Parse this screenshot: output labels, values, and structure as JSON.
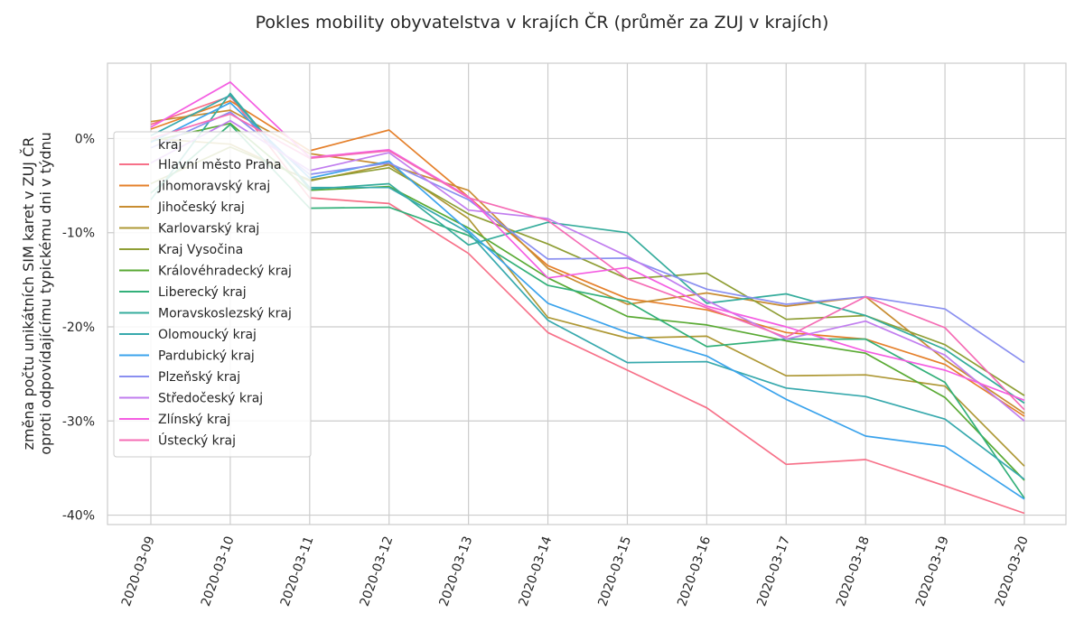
{
  "chart_data": {
    "type": "line",
    "title": "Pokles mobility obyvatelstva v krajích ČR (průměr za ZUJ v krajích)",
    "ylabel_lines": [
      "změna počtu unikátních SIM karet v ZUJ ČR",
      "oproti odpovídajícímu typickému dni v týdnu"
    ],
    "xlabel": "",
    "x": [
      "2020-03-09",
      "2020-03-10",
      "2020-03-11",
      "2020-03-12",
      "2020-03-13",
      "2020-03-14",
      "2020-03-15",
      "2020-03-16",
      "2020-03-17",
      "2020-03-18",
      "2020-03-19",
      "2020-03-20"
    ],
    "ylim": [
      -41,
      8
    ],
    "yticks": [
      0,
      -10,
      -20,
      -30,
      -40
    ],
    "ytick_labels": [
      "0%",
      "-10%",
      "-20%",
      "-30%",
      "-40%"
    ],
    "grid": true,
    "legend_title": "kraj",
    "legend_position": "upper-left",
    "series": [
      {
        "name": "Hlavní město Praha",
        "color": "#f77189",
        "values": [
          1.5,
          4.5,
          -6.3,
          -6.9,
          -12.2,
          -20.6,
          -24.6,
          -28.6,
          -34.6,
          -34.1,
          -36.9,
          -39.8
        ]
      },
      {
        "name": "Jihomoravský kraj",
        "color": "#e5802b",
        "values": [
          1.0,
          4.0,
          -1.3,
          0.9,
          -6.2,
          -13.5,
          -17.0,
          -18.2,
          -20.6,
          -21.3,
          -24.0,
          -29.5
        ]
      },
      {
        "name": "Jihočeský kraj",
        "color": "#c88d32",
        "values": [
          1.8,
          3.0,
          -1.6,
          -2.8,
          -5.5,
          -13.8,
          -17.6,
          -16.4,
          -17.8,
          -16.8,
          -23.5,
          -29.2
        ]
      },
      {
        "name": "Karlovarský kraj",
        "color": "#ae9835",
        "values": [
          0.0,
          -0.6,
          -4.5,
          -2.8,
          -8.5,
          -19.0,
          -21.2,
          -21.0,
          -25.2,
          -25.1,
          -26.3,
          -34.8
        ]
      },
      {
        "name": "Kraj Vysočina",
        "color": "#8f9e35",
        "values": [
          -4.8,
          -0.9,
          -4.4,
          -3.1,
          -8.0,
          -11.2,
          -14.9,
          -14.3,
          -19.2,
          -18.8,
          -21.9,
          -27.3
        ]
      },
      {
        "name": "Královéhradecký kraj",
        "color": "#5aaa34",
        "values": [
          -0.3,
          1.6,
          -5.5,
          -5.1,
          -9.5,
          -14.8,
          -18.9,
          -19.8,
          -21.5,
          -22.8,
          -27.5,
          -36.3
        ]
      },
      {
        "name": "Liberecký kraj",
        "color": "#33b07a",
        "values": [
          -5.8,
          1.5,
          -7.4,
          -7.3,
          -10.3,
          -15.6,
          -17.3,
          -22.1,
          -21.3,
          -21.3,
          -25.9,
          -38.2
        ]
      },
      {
        "name": "Moravskoslezský kraj",
        "color": "#35ac9c",
        "values": [
          -6.5,
          4.8,
          -5.4,
          -4.8,
          -11.3,
          -8.9,
          -10.0,
          -17.5,
          -16.5,
          -18.8,
          -22.4,
          -28.1
        ]
      },
      {
        "name": "Olomoucký kraj",
        "color": "#37a9ad",
        "values": [
          0.3,
          4.6,
          -5.2,
          -5.2,
          -10.0,
          -19.3,
          -23.8,
          -23.7,
          -26.5,
          -27.4,
          -29.8,
          -36.2
        ]
      },
      {
        "name": "Pardubický kraj",
        "color": "#3ba3ec",
        "values": [
          -0.4,
          3.8,
          -4.2,
          -2.4,
          -9.8,
          -17.5,
          -20.6,
          -23.1,
          -27.7,
          -31.6,
          -32.7,
          -38.3
        ]
      },
      {
        "name": "Plzeňský kraj",
        "color": "#8a8ff0",
        "values": [
          -1.0,
          2.8,
          -3.8,
          -2.6,
          -6.5,
          -12.8,
          -12.7,
          -16.0,
          -17.6,
          -16.8,
          -18.1,
          -23.8
        ]
      },
      {
        "name": "Středočeský kraj",
        "color": "#c17eef",
        "values": [
          -2.6,
          1.9,
          -3.4,
          -1.5,
          -7.6,
          -8.5,
          -12.5,
          -17.2,
          -21.3,
          -19.4,
          -23.0,
          -30.0
        ]
      },
      {
        "name": "Zlínský kraj",
        "color": "#f45de2",
        "values": [
          1.2,
          6.0,
          -2.0,
          -1.2,
          -6.2,
          -14.8,
          -13.7,
          -17.8,
          -20.0,
          -22.6,
          -24.6,
          -27.8
        ]
      },
      {
        "name": "Ústecký kraj",
        "color": "#f56cb5",
        "values": [
          0.0,
          2.6,
          -2.1,
          -1.3,
          -6.3,
          -8.7,
          -14.9,
          -18.0,
          -21.1,
          -16.8,
          -20.1,
          -28.8
        ]
      }
    ]
  }
}
